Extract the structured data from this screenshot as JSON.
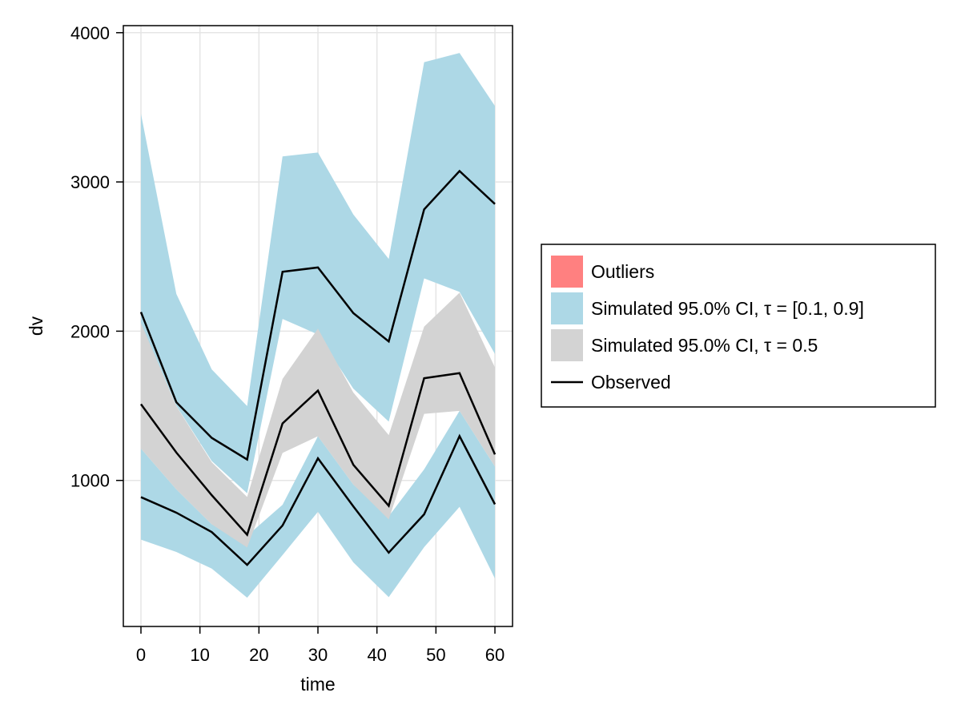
{
  "chart_data": {
    "type": "area",
    "title": "",
    "xlabel": "time",
    "ylabel": "dv",
    "xlim": [
      -3,
      63
    ],
    "ylim": [
      20,
      4060
    ],
    "grid": true,
    "x_ticks": [
      0,
      10,
      20,
      30,
      40,
      50,
      60
    ],
    "y_ticks": [
      1000,
      2000,
      3000,
      4000
    ],
    "x": [
      0,
      6,
      12,
      18,
      24,
      30,
      36,
      42,
      48,
      54,
      60
    ],
    "bands": [
      {
        "name": "Simulated 95.0% CI, τ = [0.1, 0.9]",
        "color": "#add8e6",
        "lower": [
          2050,
          1500,
          1130,
          914,
          2082,
          1978,
          1615,
          1394,
          2354,
          2263,
          1847
        ],
        "upper": [
          3457,
          2250,
          1744,
          1498,
          3171,
          3197,
          2782,
          2484,
          3802,
          3864,
          3509
        ]
      },
      {
        "name": "Simulated 95.0% CI, τ = [0.1, 0.9]",
        "color": "#add8e6",
        "lower": [
          603,
          521,
          409,
          214,
          500,
          790,
          451,
          218,
          553,
          823,
          343
        ],
        "upper": [
          1213,
          940,
          706,
          629,
          837,
          1296,
          972,
          760,
          1074,
          1466,
          1093
        ]
      },
      {
        "name": "Simulated 95.0% CI, τ = 0.5",
        "color": "#d3d3d3",
        "lower": [
          1213,
          940,
          706,
          551,
          1184,
          1296,
          972,
          739,
          1446,
          1466,
          1093
        ],
        "upper": [
          2056,
          1498,
          1122,
          889,
          1680,
          2017,
          1589,
          1304,
          2030,
          2258,
          1757
        ]
      }
    ],
    "series": [
      {
        "name": "Observed",
        "color": "#000000",
        "values": [
          2128,
          1524,
          1285,
          1140,
          2398,
          2427,
          2121,
          1931,
          2816,
          3073,
          2852
        ]
      },
      {
        "name": "Observed",
        "color": "#000000",
        "values": [
          1511,
          1187,
          901,
          636,
          1382,
          1602,
          1105,
          830,
          1685,
          1719,
          1174
        ]
      },
      {
        "name": "Observed",
        "color": "#000000",
        "values": [
          888,
          784,
          654,
          434,
          698,
          1148,
          826,
          516,
          773,
          1297,
          840
        ]
      }
    ],
    "legend": {
      "position": "right",
      "entries": [
        {
          "label": "Outliers",
          "color": "#ff8080",
          "kind": "patch"
        },
        {
          "label": "Simulated 95.0% CI, τ = [0.1, 0.9]",
          "color": "#add8e6",
          "kind": "patch"
        },
        {
          "label": "Simulated 95.0% CI, τ = 0.5",
          "color": "#d3d3d3",
          "kind": "patch"
        },
        {
          "label": "Observed",
          "color": "#000000",
          "kind": "line"
        }
      ]
    }
  }
}
